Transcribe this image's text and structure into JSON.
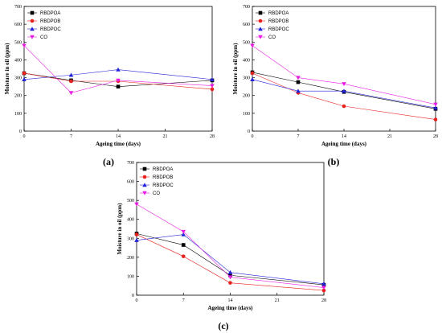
{
  "chart_data": [
    {
      "type": "line",
      "panel_label": "(a)",
      "xlabel": "Ageing time (days)",
      "ylabel": "Moisture in oil (ppm)",
      "x": [
        0,
        7,
        14,
        28
      ],
      "xticks": [
        0,
        7,
        14,
        21,
        28
      ],
      "yticks": [
        0,
        100,
        200,
        300,
        400,
        500,
        600,
        700
      ],
      "xlim": [
        0,
        28
      ],
      "ylim": [
        0,
        700
      ],
      "legend_position": "top-left",
      "series": [
        {
          "name": "RBDPOA",
          "color": "#000000",
          "marker": "square",
          "values": [
            325,
            285,
            250,
            285
          ]
        },
        {
          "name": "RBDPOB",
          "color": "#e8211d",
          "marker": "circle",
          "values": [
            325,
            280,
            280,
            235
          ]
        },
        {
          "name": "RBDPOC",
          "color": "#2323d9",
          "marker": "triangle-up",
          "values": [
            290,
            315,
            345,
            290
          ]
        },
        {
          "name": "CO",
          "color": "#e81fe3",
          "marker": "triangle-down",
          "values": [
            480,
            215,
            285,
            255
          ]
        }
      ]
    },
    {
      "type": "line",
      "panel_label": "(b)",
      "xlabel": "Ageing time (days)",
      "ylabel": "Moisture in oil (ppm)",
      "x": [
        0,
        7,
        14,
        28
      ],
      "xticks": [
        0,
        7,
        14,
        21,
        28
      ],
      "yticks": [
        0,
        100,
        200,
        300,
        400,
        500,
        600,
        700
      ],
      "xlim": [
        0,
        28
      ],
      "ylim": [
        0,
        700
      ],
      "legend_position": "top-left",
      "series": [
        {
          "name": "RBDPOA",
          "color": "#000000",
          "marker": "square",
          "values": [
            330,
            275,
            220,
            125
          ]
        },
        {
          "name": "RBDPOB",
          "color": "#e8211d",
          "marker": "circle",
          "values": [
            325,
            215,
            140,
            65
          ]
        },
        {
          "name": "RBDPOC",
          "color": "#2323d9",
          "marker": "triangle-up",
          "values": [
            290,
            225,
            225,
            130
          ]
        },
        {
          "name": "CO",
          "color": "#e81fe3",
          "marker": "triangle-down",
          "values": [
            480,
            300,
            265,
            150
          ]
        }
      ]
    },
    {
      "type": "line",
      "panel_label": "(c)",
      "xlabel": "Ageing time (days)",
      "ylabel": "Moisture in oil (ppm)",
      "x": [
        0,
        7,
        14,
        28
      ],
      "xticks": [
        0,
        7,
        14,
        21,
        28
      ],
      "yticks": [
        0,
        100,
        200,
        300,
        400,
        500,
        600,
        700
      ],
      "xlim": [
        0,
        28
      ],
      "ylim": [
        0,
        700
      ],
      "legend_position": "top-left",
      "series": [
        {
          "name": "RBDPOA",
          "color": "#000000",
          "marker": "square",
          "values": [
            325,
            265,
            105,
            55
          ]
        },
        {
          "name": "RBDPOB",
          "color": "#e8211d",
          "marker": "circle",
          "values": [
            320,
            205,
            65,
            25
          ]
        },
        {
          "name": "RBDPOC",
          "color": "#2323d9",
          "marker": "triangle-up",
          "values": [
            290,
            320,
            120,
            60
          ]
        },
        {
          "name": "CO",
          "color": "#e81fe3",
          "marker": "triangle-down",
          "values": [
            480,
            335,
            95,
            40
          ]
        }
      ]
    }
  ]
}
